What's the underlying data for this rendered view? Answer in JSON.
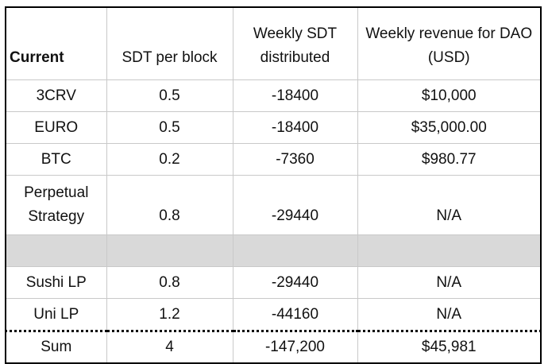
{
  "table": {
    "headers": [
      "Current",
      "SDT per block",
      "Weekly SDT distributed",
      "Weekly revenue for DAO (USD)"
    ],
    "rows": [
      {
        "name": "3CRV",
        "sdt_per_block": "0.5",
        "weekly_sdt": "-18400",
        "revenue": "$10,000"
      },
      {
        "name": "EURO",
        "sdt_per_block": "0.5",
        "weekly_sdt": "-18400",
        "revenue": "$35,000.00"
      },
      {
        "name": "BTC",
        "sdt_per_block": "0.2",
        "weekly_sdt": "-7360",
        "revenue": "$980.77"
      },
      {
        "name": "Perpetual Strategy",
        "sdt_per_block": "0.8",
        "weekly_sdt": "-29440",
        "revenue": "N/A"
      },
      {
        "name": "",
        "sdt_per_block": "",
        "weekly_sdt": "",
        "revenue": ""
      },
      {
        "name": "Sushi LP",
        "sdt_per_block": "0.8",
        "weekly_sdt": "-29440",
        "revenue": "N/A"
      },
      {
        "name": "Uni LP",
        "sdt_per_block": "1.2",
        "weekly_sdt": "-44160",
        "revenue": "N/A"
      }
    ],
    "sum": {
      "name": "Sum",
      "sdt_per_block": "4",
      "weekly_sdt": "-147,200",
      "revenue": "$45,981"
    }
  }
}
